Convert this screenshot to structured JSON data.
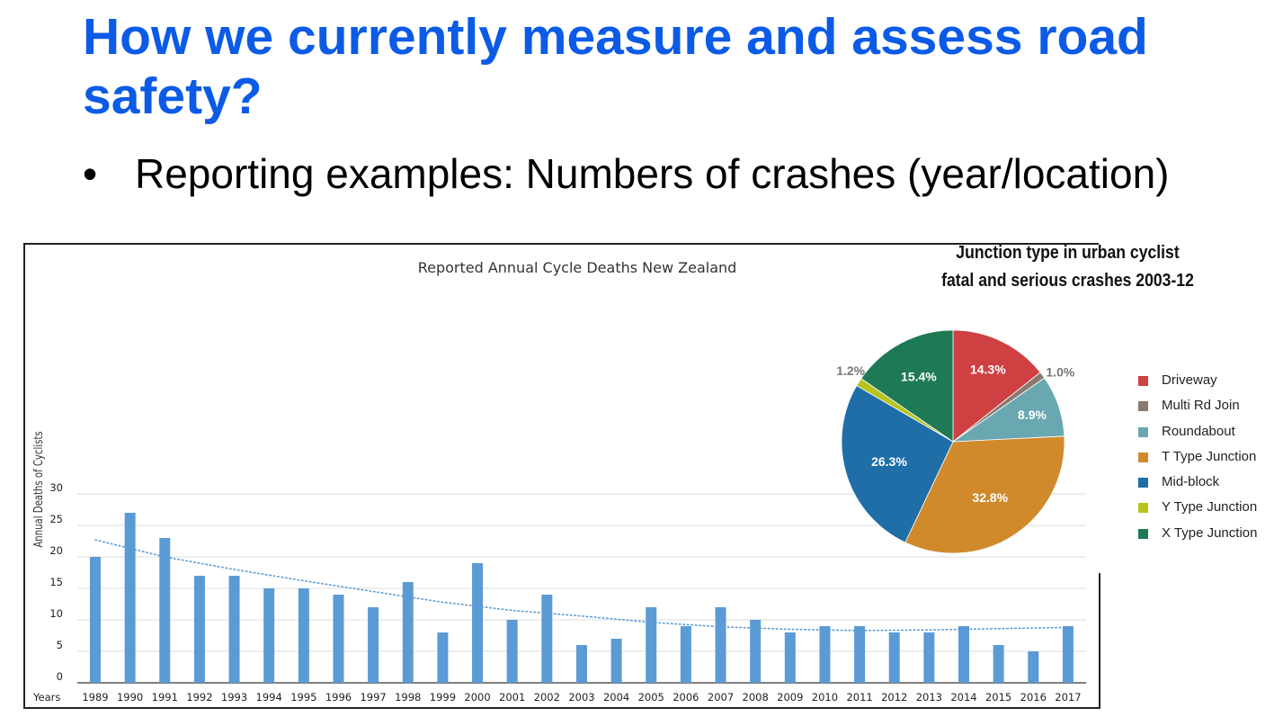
{
  "slide": {
    "title": "How we currently measure and assess road safety?",
    "bullet_marker": "•",
    "bullet": "Reporting examples: Numbers of crashes (year/location)"
  },
  "chart_data": [
    {
      "type": "bar",
      "title": "Reported Annual Cycle Deaths New Zealand",
      "xlabel": "Years",
      "ylabel": "Annual Deaths of Cyclists",
      "categories": [
        "1989",
        "1990",
        "1991",
        "1992",
        "1993",
        "1994",
        "1995",
        "1996",
        "1997",
        "1998",
        "1999",
        "2000",
        "2001",
        "2002",
        "2003",
        "2004",
        "2005",
        "2006",
        "2007",
        "2008",
        "2009",
        "2010",
        "2011",
        "2012",
        "2013",
        "2014",
        "2015",
        "2016",
        "2017"
      ],
      "values": [
        20,
        27,
        23,
        17,
        17,
        15,
        15,
        14,
        12,
        16,
        8,
        19,
        10,
        14,
        6,
        7,
        12,
        9,
        12,
        10,
        8,
        9,
        9,
        8,
        8,
        9,
        6,
        5,
        9
      ],
      "trendline": {
        "style": "dotted",
        "categories": [
          "1989",
          "1991",
          "1993",
          "1995",
          "1997",
          "1999",
          "2001",
          "2003",
          "2005",
          "2007",
          "2009",
          "2011",
          "2013",
          "2015",
          "2017"
        ],
        "values": [
          22.7,
          20.0,
          18.0,
          16.2,
          14.5,
          12.8,
          11.5,
          10.6,
          9.6,
          8.9,
          8.5,
          8.3,
          8.4,
          8.6,
          8.8
        ]
      },
      "ylim": [
        0,
        30
      ],
      "yticks": [
        "0",
        "5",
        "10",
        "15",
        "20",
        "25",
        "30"
      ],
      "grid": true,
      "bar_color": "#5b9bd5",
      "trend_color": "#5b9bd5"
    },
    {
      "type": "pie",
      "title": [
        "Junction type in urban cyclist",
        "fatal and serious crashes 2003-12"
      ],
      "slices": [
        {
          "label": "Driveway",
          "value": 14.3,
          "text": "14.3%",
          "color": "#cf4043"
        },
        {
          "label": "Multi Rd Join",
          "value": 1.0,
          "text": "1.0%",
          "color": "#8a7a6e"
        },
        {
          "label": "Roundabout",
          "value": 8.9,
          "text": "8.9%",
          "color": "#6aa8b1"
        },
        {
          "label": "T Type Junction",
          "value": 32.8,
          "text": "32.8%",
          "color": "#d08a2c"
        },
        {
          "label": "Mid-block",
          "value": 26.3,
          "text": "26.3%",
          "color": "#1f6ea8"
        },
        {
          "label": "Y Type Junction",
          "value": 1.2,
          "text": "1.2%",
          "color": "#b5c41f"
        },
        {
          "label": "X Type Junction",
          "value": 15.4,
          "text": "15.4%",
          "color": "#1e7a55"
        }
      ],
      "legend_position": "right"
    }
  ]
}
